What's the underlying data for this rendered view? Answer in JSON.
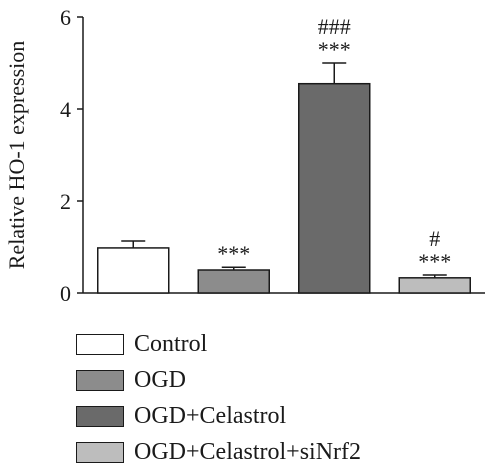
{
  "chart_data": {
    "type": "bar",
    "title": "",
    "xlabel": "",
    "ylabel": "Relative HO-1 expression",
    "ylim": [
      0,
      6
    ],
    "yticks": [
      "0",
      "2",
      "4",
      "6"
    ],
    "grid": false,
    "legend_position": "bottom",
    "categories": [
      "Control",
      "OGD",
      "OGD+Celastrol",
      "OGD+Celastrol+siNrf2"
    ],
    "values": [
      0.98,
      0.5,
      4.55,
      0.33
    ],
    "errors": [
      0.15,
      0.06,
      0.45,
      0.06
    ],
    "colors": [
      "#ffffff",
      "#8c8c8c",
      "#6a6a6a",
      "#bdbdbd"
    ],
    "annotations": [
      [],
      [
        "***"
      ],
      [
        "###",
        "***"
      ],
      [
        "#",
        "***"
      ]
    ]
  },
  "legend": {
    "items": [
      {
        "label": "Control",
        "color": "#ffffff"
      },
      {
        "label": "OGD",
        "color": "#8c8c8c"
      },
      {
        "label": "OGD+Celastrol",
        "color": "#6a6a6a"
      },
      {
        "label": "OGD+Celastrol+siNrf2",
        "color": "#bdbdbd"
      }
    ]
  }
}
